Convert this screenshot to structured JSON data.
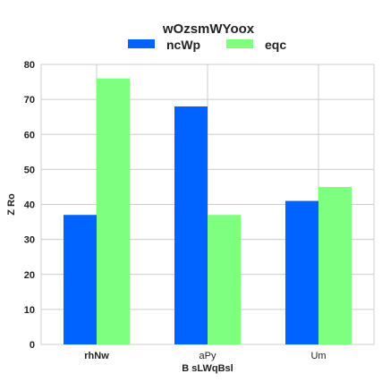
{
  "chart_data": {
    "type": "bar",
    "categories": [
      "rhNw",
      "aPy",
      "Um"
    ],
    "category_bold": [
      true,
      false,
      false
    ],
    "series": [
      {
        "name": "ncWp",
        "values": [
          37,
          68,
          41
        ],
        "color": "#0062ff"
      },
      {
        "name": "eqc",
        "values": [
          76,
          37,
          45
        ],
        "color": "#7fff7f"
      }
    ],
    "legend_title": "wOzsmWYoox",
    "legend_placement": "top-center",
    "xlabel": "B sLWqBsl",
    "ylabel": "Z Ro",
    "ylim": [
      0,
      80
    ],
    "yticks": [
      0,
      10,
      20,
      30,
      40,
      50,
      60,
      70,
      80
    ],
    "grid": true
  }
}
